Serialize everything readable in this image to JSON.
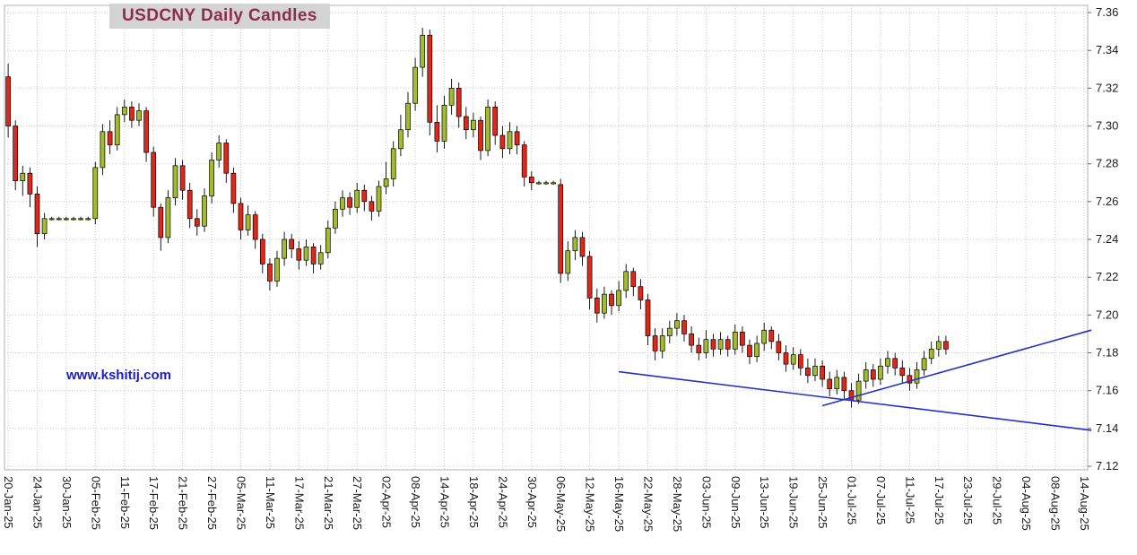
{
  "title": "USDCNY Daily Candles",
  "watermark": "www.kshitij.com",
  "colors": {
    "background": "#ffffff",
    "up_candle": "#a2bc2c",
    "down_candle": "#e22617",
    "candle_border": "#000000",
    "wick": "#000000",
    "grid": "#c9c9c9",
    "axis_text": "#1a1a1a",
    "trendline": "#2231c8",
    "title_text": "#8e2c50",
    "title_bg": "#d4d4d4",
    "watermark_text": "#1c1ccd",
    "plot_border": "#b0b0b0"
  },
  "chart_data": {
    "type": "candlestick",
    "title": "USDCNY Daily Candles",
    "grid": true,
    "y_axis": {
      "side": "right",
      "min": 7.12,
      "max": 7.36,
      "ticks": [
        7.36,
        7.34,
        7.32,
        7.3,
        7.28,
        7.26,
        7.24,
        7.22,
        7.2,
        7.18,
        7.16,
        7.14,
        7.12
      ],
      "tick_format": "0.00"
    },
    "x_axis": {
      "label_every_slots": 4,
      "total_slots": 149,
      "rotation_deg": 90,
      "labels": [
        "20-Jan-25",
        "24-Jan-25",
        "30-Jan-25",
        "05-Feb-25",
        "11-Feb-25",
        "17-Feb-25",
        "21-Feb-25",
        "27-Feb-25",
        "05-Mar-25",
        "11-Mar-25",
        "17-Mar-25",
        "21-Mar-25",
        "27-Mar-25",
        "02-Apr-25",
        "08-Apr-25",
        "14-Apr-25",
        "18-Apr-25",
        "24-Apr-25",
        "30-Apr-25",
        "06-May-25",
        "12-May-25",
        "16-May-25",
        "22-May-25",
        "28-May-25",
        "03-Jun-25",
        "09-Jun-25",
        "13-Jun-25",
        "19-Jun-25",
        "25-Jun-25",
        "01-Jul-25",
        "07-Jul-25",
        "11-Jul-25",
        "17-Jul-25",
        "23-Jul-25",
        "29-Jul-25",
        "04-Aug-25",
        "08-Aug-25",
        "14-Aug-25"
      ]
    },
    "candle_format": [
      "date",
      "open",
      "high",
      "low",
      "close"
    ],
    "candles": [
      [
        "20-Jan-25",
        7.326,
        7.333,
        7.294,
        7.3
      ],
      [
        "21-Jan-25",
        7.3,
        7.303,
        7.266,
        7.271
      ],
      [
        "22-Jan-25",
        7.271,
        7.279,
        7.263,
        7.275
      ],
      [
        "23-Jan-25",
        7.275,
        7.278,
        7.257,
        7.264
      ],
      [
        "24-Jan-25",
        7.264,
        7.268,
        7.236,
        7.243
      ],
      [
        "27-Jan-25",
        7.243,
        7.254,
        7.24,
        7.251
      ],
      [
        "28-Jan-25",
        7.251,
        7.252,
        7.25,
        7.251
      ],
      [
        "29-Jan-25",
        7.251,
        7.252,
        7.25,
        7.251
      ],
      [
        "30-Jan-25",
        7.251,
        7.252,
        7.25,
        7.251
      ],
      [
        "31-Jan-25",
        7.251,
        7.252,
        7.25,
        7.251
      ],
      [
        "03-Feb-25",
        7.251,
        7.252,
        7.25,
        7.251
      ],
      [
        "04-Feb-25",
        7.251,
        7.252,
        7.25,
        7.251
      ],
      [
        "05-Feb-25",
        7.251,
        7.281,
        7.248,
        7.278
      ],
      [
        "06-Feb-25",
        7.278,
        7.301,
        7.274,
        7.297
      ],
      [
        "07-Feb-25",
        7.297,
        7.303,
        7.285,
        7.29
      ],
      [
        "10-Feb-25",
        7.29,
        7.31,
        7.287,
        7.306
      ],
      [
        "11-Feb-25",
        7.306,
        7.314,
        7.302,
        7.31
      ],
      [
        "12-Feb-25",
        7.31,
        7.313,
        7.299,
        7.303
      ],
      [
        "13-Feb-25",
        7.303,
        7.312,
        7.3,
        7.308
      ],
      [
        "14-Feb-25",
        7.308,
        7.31,
        7.281,
        7.286
      ],
      [
        "17-Feb-25",
        7.286,
        7.289,
        7.252,
        7.257
      ],
      [
        "18-Feb-25",
        7.257,
        7.259,
        7.234,
        7.241
      ],
      [
        "19-Feb-25",
        7.241,
        7.266,
        7.238,
        7.262
      ],
      [
        "20-Feb-25",
        7.262,
        7.283,
        7.258,
        7.279
      ],
      [
        "21-Feb-25",
        7.279,
        7.282,
        7.261,
        7.266
      ],
      [
        "24-Feb-25",
        7.266,
        7.27,
        7.246,
        7.251
      ],
      [
        "25-Feb-25",
        7.251,
        7.256,
        7.242,
        7.247
      ],
      [
        "26-Feb-25",
        7.247,
        7.267,
        7.244,
        7.263
      ],
      [
        "27-Feb-25",
        7.263,
        7.286,
        7.259,
        7.282
      ],
      [
        "28-Feb-25",
        7.282,
        7.295,
        7.278,
        7.291
      ],
      [
        "03-Mar-25",
        7.291,
        7.293,
        7.27,
        7.275
      ],
      [
        "04-Mar-25",
        7.275,
        7.278,
        7.254,
        7.259
      ],
      [
        "05-Mar-25",
        7.259,
        7.262,
        7.24,
        7.245
      ],
      [
        "06-Mar-25",
        7.245,
        7.258,
        7.242,
        7.253
      ],
      [
        "07-Mar-25",
        7.253,
        7.255,
        7.235,
        7.24
      ],
      [
        "10-Mar-25",
        7.24,
        7.243,
        7.222,
        7.227
      ],
      [
        "11-Mar-25",
        7.227,
        7.23,
        7.213,
        7.218
      ],
      [
        "12-Mar-25",
        7.218,
        7.234,
        7.215,
        7.23
      ],
      [
        "13-Mar-25",
        7.23,
        7.244,
        7.226,
        7.24
      ],
      [
        "14-Mar-25",
        7.24,
        7.243,
        7.23,
        7.235
      ],
      [
        "17-Mar-25",
        7.235,
        7.239,
        7.224,
        7.229
      ],
      [
        "18-Mar-25",
        7.229,
        7.24,
        7.226,
        7.236
      ],
      [
        "19-Mar-25",
        7.236,
        7.238,
        7.222,
        7.227
      ],
      [
        "20-Mar-25",
        7.227,
        7.237,
        7.224,
        7.233
      ],
      [
        "21-Mar-25",
        7.233,
        7.25,
        7.23,
        7.246
      ],
      [
        "24-Mar-25",
        7.246,
        7.26,
        7.243,
        7.256
      ],
      [
        "25-Mar-25",
        7.256,
        7.266,
        7.252,
        7.262
      ],
      [
        "26-Mar-25",
        7.262,
        7.265,
        7.253,
        7.257
      ],
      [
        "27-Mar-25",
        7.257,
        7.27,
        7.254,
        7.266
      ],
      [
        "28-Mar-25",
        7.266,
        7.269,
        7.255,
        7.26
      ],
      [
        "31-Mar-25",
        7.26,
        7.263,
        7.25,
        7.255
      ],
      [
        "01-Apr-25",
        7.255,
        7.271,
        7.252,
        7.268
      ],
      [
        "02-Apr-25",
        7.268,
        7.281,
        7.264,
        7.272
      ],
      [
        "03-Apr-25",
        7.272,
        7.292,
        7.268,
        7.288
      ],
      [
        "04-Apr-25",
        7.288,
        7.306,
        7.284,
        7.298
      ],
      [
        "07-Apr-25",
        7.298,
        7.318,
        7.294,
        7.312
      ],
      [
        "08-Apr-25",
        7.312,
        7.336,
        7.308,
        7.331
      ],
      [
        "09-Apr-25",
        7.331,
        7.352,
        7.326,
        7.348
      ],
      [
        "10-Apr-25",
        7.348,
        7.351,
        7.295,
        7.302
      ],
      [
        "11-Apr-25",
        7.302,
        7.311,
        7.286,
        7.292
      ],
      [
        "14-Apr-25",
        7.292,
        7.316,
        7.288,
        7.311
      ],
      [
        "15-Apr-25",
        7.311,
        7.325,
        7.306,
        7.32
      ],
      [
        "16-Apr-25",
        7.32,
        7.323,
        7.299,
        7.305
      ],
      [
        "17-Apr-25",
        7.305,
        7.31,
        7.293,
        7.298
      ],
      [
        "18-Apr-25",
        7.298,
        7.307,
        7.294,
        7.303
      ],
      [
        "21-Apr-25",
        7.303,
        7.305,
        7.282,
        7.287
      ],
      [
        "22-Apr-25",
        7.287,
        7.314,
        7.284,
        7.31
      ],
      [
        "23-Apr-25",
        7.31,
        7.313,
        7.29,
        7.295
      ],
      [
        "24-Apr-25",
        7.295,
        7.3,
        7.283,
        7.288
      ],
      [
        "25-Apr-25",
        7.288,
        7.302,
        7.285,
        7.297
      ],
      [
        "28-Apr-25",
        7.297,
        7.3,
        7.285,
        7.29
      ],
      [
        "29-Apr-25",
        7.29,
        7.292,
        7.268,
        7.273
      ],
      [
        "30-Apr-25",
        7.273,
        7.276,
        7.266,
        7.27
      ],
      [
        "01-May-25",
        7.27,
        7.271,
        7.269,
        7.27
      ],
      [
        "02-May-25",
        7.27,
        7.271,
        7.269,
        7.27
      ],
      [
        "05-May-25",
        7.27,
        7.271,
        7.269,
        7.27
      ],
      [
        "06-May-25",
        7.269,
        7.272,
        7.217,
        7.222
      ],
      [
        "07-May-25",
        7.222,
        7.239,
        7.218,
        7.234
      ],
      [
        "08-May-25",
        7.234,
        7.245,
        7.229,
        7.241
      ],
      [
        "09-May-25",
        7.241,
        7.244,
        7.226,
        7.231
      ],
      [
        "12-May-25",
        7.231,
        7.234,
        7.203,
        7.209
      ],
      [
        "13-May-25",
        7.209,
        7.214,
        7.196,
        7.201
      ],
      [
        "14-May-25",
        7.201,
        7.215,
        7.198,
        7.211
      ],
      [
        "15-May-25",
        7.211,
        7.213,
        7.2,
        7.205
      ],
      [
        "16-May-25",
        7.205,
        7.218,
        7.202,
        7.213
      ],
      [
        "19-May-25",
        7.213,
        7.227,
        7.209,
        7.223
      ],
      [
        "20-May-25",
        7.223,
        7.225,
        7.21,
        7.215
      ],
      [
        "21-May-25",
        7.215,
        7.219,
        7.203,
        7.208
      ],
      [
        "22-May-25",
        7.208,
        7.211,
        7.184,
        7.189
      ],
      [
        "23-May-25",
        7.189,
        7.193,
        7.176,
        7.181
      ],
      [
        "26-May-25",
        7.181,
        7.193,
        7.177,
        7.189
      ],
      [
        "27-May-25",
        7.189,
        7.197,
        7.185,
        7.193
      ],
      [
        "28-May-25",
        7.193,
        7.201,
        7.189,
        7.197
      ],
      [
        "29-May-25",
        7.197,
        7.2,
        7.186,
        7.19
      ],
      [
        "30-May-25",
        7.19,
        7.194,
        7.18,
        7.184
      ],
      [
        "02-Jun-25",
        7.184,
        7.188,
        7.176,
        7.18
      ],
      [
        "03-Jun-25",
        7.18,
        7.192,
        7.177,
        7.187
      ],
      [
        "04-Jun-25",
        7.187,
        7.19,
        7.178,
        7.182
      ],
      [
        "05-Jun-25",
        7.182,
        7.191,
        7.179,
        7.187
      ],
      [
        "06-Jun-25",
        7.187,
        7.189,
        7.178,
        7.182
      ],
      [
        "09-Jun-25",
        7.182,
        7.195,
        7.179,
        7.191
      ],
      [
        "10-Jun-25",
        7.191,
        7.194,
        7.18,
        7.184
      ],
      [
        "11-Jun-25",
        7.184,
        7.187,
        7.174,
        7.178
      ],
      [
        "12-Jun-25",
        7.178,
        7.189,
        7.175,
        7.185
      ],
      [
        "13-Jun-25",
        7.185,
        7.196,
        7.181,
        7.192
      ],
      [
        "16-Jun-25",
        7.192,
        7.194,
        7.182,
        7.186
      ],
      [
        "17-Jun-25",
        7.186,
        7.19,
        7.176,
        7.18
      ],
      [
        "18-Jun-25",
        7.18,
        7.184,
        7.17,
        7.174
      ],
      [
        "19-Jun-25",
        7.174,
        7.183,
        7.171,
        7.179
      ],
      [
        "20-Jun-25",
        7.179,
        7.182,
        7.168,
        7.172
      ],
      [
        "23-Jun-25",
        7.172,
        7.177,
        7.164,
        7.168
      ],
      [
        "24-Jun-25",
        7.168,
        7.177,
        7.165,
        7.173
      ],
      [
        "25-Jun-25",
        7.173,
        7.176,
        7.162,
        7.166
      ],
      [
        "26-Jun-25",
        7.166,
        7.17,
        7.157,
        7.161
      ],
      [
        "27-Jun-25",
        7.161,
        7.171,
        7.158,
        7.167
      ],
      [
        "30-Jun-25",
        7.167,
        7.17,
        7.155,
        7.16
      ],
      [
        "01-Jul-25",
        7.16,
        7.164,
        7.151,
        7.155
      ],
      [
        "02-Jul-25",
        7.155,
        7.169,
        7.153,
        7.165
      ],
      [
        "03-Jul-25",
        7.165,
        7.175,
        7.161,
        7.171
      ],
      [
        "04-Jul-25",
        7.171,
        7.174,
        7.162,
        7.166
      ],
      [
        "07-Jul-25",
        7.166,
        7.177,
        7.163,
        7.173
      ],
      [
        "08-Jul-25",
        7.173,
        7.181,
        7.169,
        7.177
      ],
      [
        "09-Jul-25",
        7.177,
        7.18,
        7.168,
        7.172
      ],
      [
        "10-Jul-25",
        7.172,
        7.176,
        7.164,
        7.168
      ],
      [
        "11-Jul-25",
        7.168,
        7.172,
        7.16,
        7.164
      ],
      [
        "14-Jul-25",
        7.164,
        7.175,
        7.161,
        7.171
      ],
      [
        "15-Jul-25",
        7.171,
        7.181,
        7.168,
        7.177
      ],
      [
        "16-Jul-25",
        7.177,
        7.186,
        7.174,
        7.182
      ],
      [
        "17-Jul-25",
        7.182,
        7.189,
        7.178,
        7.186
      ],
      [
        "18-Jul-25",
        7.186,
        7.189,
        7.179,
        7.182
      ]
    ],
    "trendlines": [
      {
        "name": "descending-trendline",
        "from": {
          "slot": 84,
          "price": 7.17
        },
        "to": {
          "slot": 149,
          "price": 7.139
        }
      },
      {
        "name": "ascending-trendline",
        "from": {
          "slot": 112,
          "price": 7.152
        },
        "to": {
          "slot": 149,
          "price": 7.192
        }
      }
    ]
  }
}
